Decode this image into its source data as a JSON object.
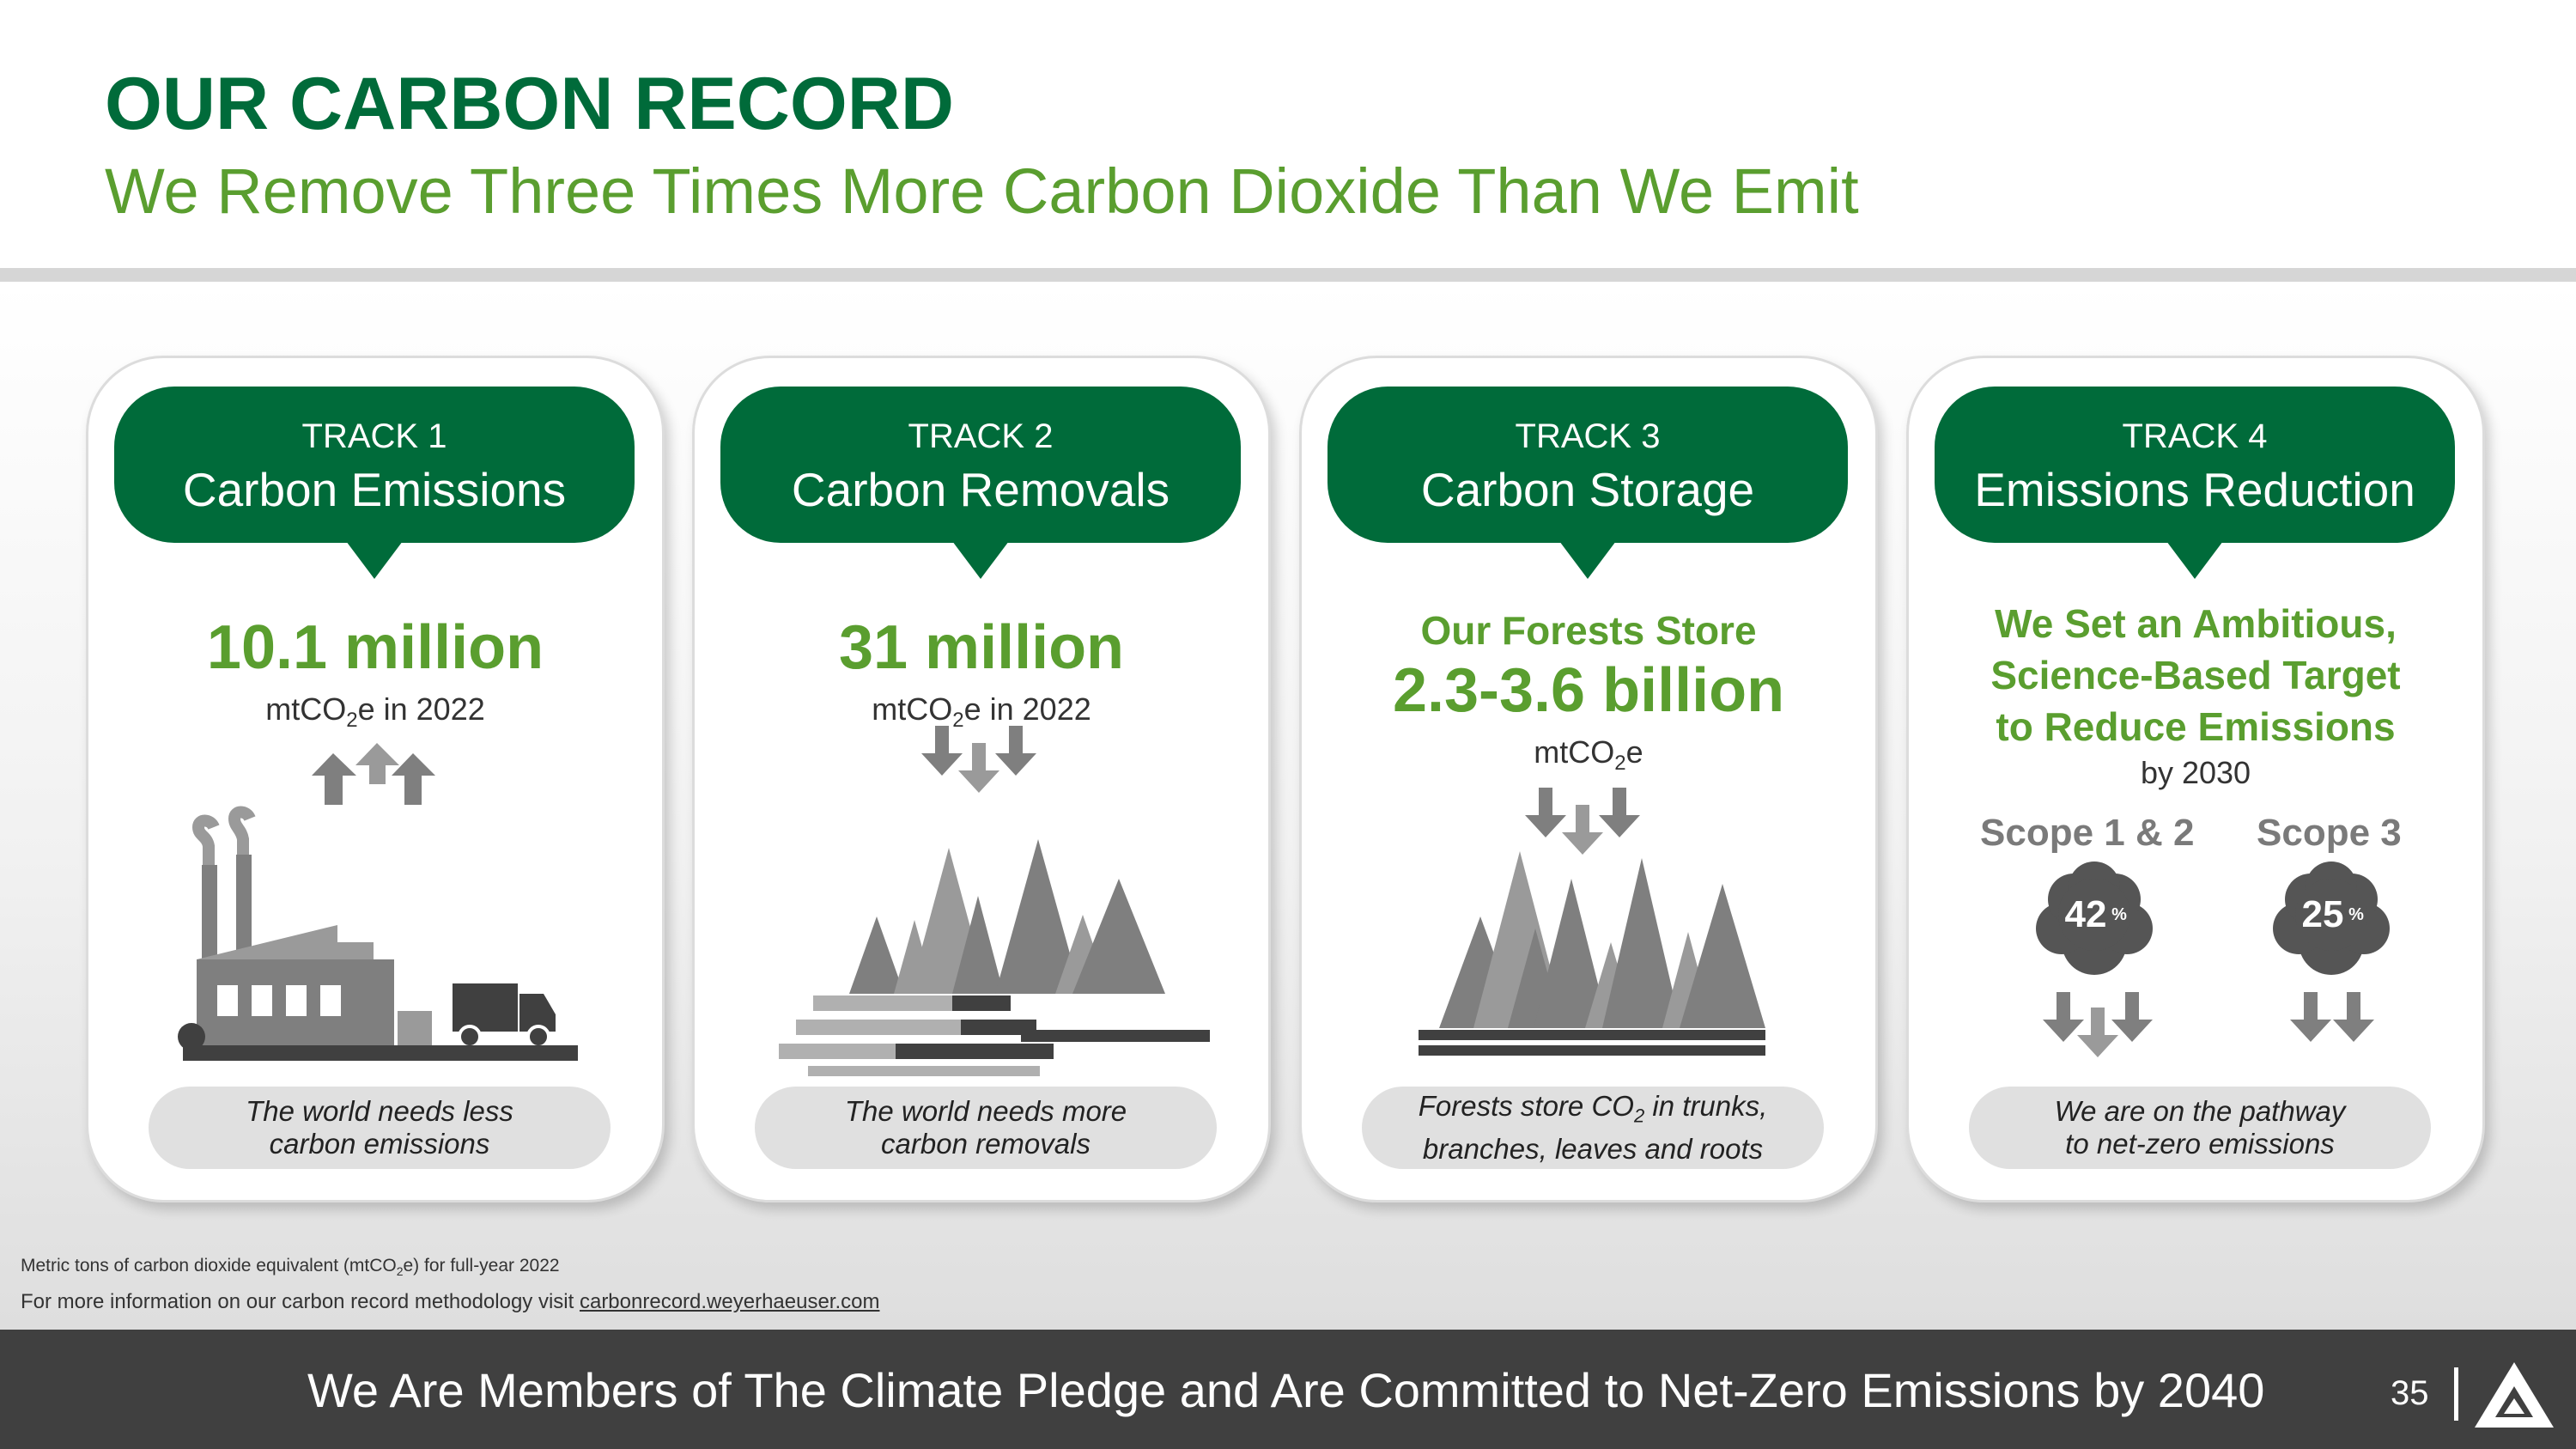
{
  "header": {
    "title": "OUR CARBON RECORD",
    "subtitle": "We Remove Three Times More Carbon Dioxide Than We Emit"
  },
  "cards": [
    {
      "track": "TRACK 1",
      "name": "Carbon Emissions",
      "value": "10.1 million",
      "unit_prefix": "mtCO",
      "unit_sub": "2",
      "unit_suffix": "e in 2022",
      "caption_line1": "The world needs less",
      "caption_line2": "carbon emissions",
      "icon": "factory-truck-icon"
    },
    {
      "track": "TRACK 2",
      "name": "Carbon Removals",
      "value": "31 million",
      "unit_prefix": "mtCO",
      "unit_sub": "2",
      "unit_suffix": "e in 2022",
      "caption_line1": "The world needs more",
      "caption_line2": "carbon removals",
      "icon": "forest-logs-icon"
    },
    {
      "track": "TRACK 3",
      "name": "Carbon Storage",
      "lead": "Our Forests Store",
      "value": "2.3-3.6 billion",
      "unit_prefix": "mtCO",
      "unit_sub": "2",
      "unit_suffix": "e",
      "caption_line1_pre": "Forests store CO",
      "caption_line1_sub": "2",
      "caption_line1_post": " in trunks,",
      "caption_line2": "branches, leaves and roots",
      "icon": "forest-icon"
    },
    {
      "track": "TRACK 4",
      "name": "Emissions Reduction",
      "lead_line1": "We Set an Ambitious,",
      "lead_line2": "Science-Based Target",
      "lead_line3": "to Reduce Emissions",
      "by": "by 2030",
      "scopes": [
        {
          "label": "Scope 1 & 2",
          "value": "42",
          "unit": "%"
        },
        {
          "label": "Scope 3",
          "value": "25",
          "unit": "%"
        }
      ],
      "caption_line1": "We are on the pathway",
      "caption_line2": "to net-zero emissions",
      "icon": "cloud-down-arrows-icon"
    }
  ],
  "footnotes": {
    "line1_pre": "Metric tons of carbon dioxide equivalent (mtCO",
    "line1_sub": "2",
    "line1_post": "e) for full-year 2022",
    "line2": "For more information on our carbon record methodology visit",
    "link": "carbonrecord.weyerhaeuser.com"
  },
  "footer": {
    "banner": "We Are Members of The Climate Pledge and Are Committed to Net-Zero Emissions by 2040",
    "page": "35",
    "logo": "weyerhaeuser-logo-icon"
  },
  "colors": {
    "dark_green": "#006b3a",
    "light_green": "#5a9e2f",
    "gray_bar": "#404040"
  }
}
